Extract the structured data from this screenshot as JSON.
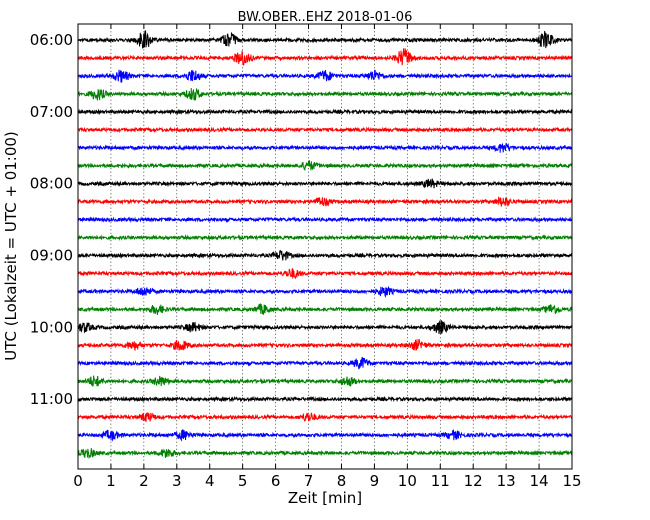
{
  "chart_data": {
    "type": "line",
    "title": "BW.OBER..EHZ 2018-01-06",
    "xlabel": "Zeit  [min]",
    "ylabel": "UTC (Lokalzeit = UTC + 01:00)",
    "xlim": [
      0,
      15
    ],
    "x_ticks": [
      "0",
      "1",
      "2",
      "3",
      "4",
      "5",
      "6",
      "7",
      "8",
      "9",
      "10",
      "11",
      "12",
      "13",
      "14",
      "15"
    ],
    "y_ticks": [
      "06:00",
      "07:00",
      "08:00",
      "09:00",
      "10:00",
      "11:00"
    ],
    "grid": "vertical dotted",
    "color_cycle": [
      "#000000",
      "#ff0000",
      "#0000ff",
      "#008000"
    ],
    "series": [
      {
        "start": "06:00",
        "color": "#000000",
        "bursts": [
          [
            2.0,
            2.6
          ],
          [
            4.6,
            1.8
          ],
          [
            14.2,
            2.4
          ]
        ]
      },
      {
        "start": "06:15",
        "color": "#ff0000",
        "bursts": [
          [
            5.0,
            2.2
          ],
          [
            9.9,
            2.6
          ]
        ]
      },
      {
        "start": "06:30",
        "color": "#0000ff",
        "bursts": [
          [
            1.3,
            1.7
          ],
          [
            3.5,
            1.7
          ],
          [
            7.5,
            1.5
          ],
          [
            9.0,
            1.4
          ]
        ]
      },
      {
        "start": "06:45",
        "color": "#008000",
        "bursts": [
          [
            0.6,
            1.6
          ],
          [
            3.5,
            1.7
          ]
        ]
      },
      {
        "start": "07:00",
        "color": "#000000",
        "bursts": []
      },
      {
        "start": "07:15",
        "color": "#ff0000",
        "bursts": []
      },
      {
        "start": "07:30",
        "color": "#0000ff",
        "bursts": [
          [
            12.9,
            1.3
          ]
        ]
      },
      {
        "start": "07:45",
        "color": "#008000",
        "bursts": [
          [
            7.0,
            1.3
          ]
        ]
      },
      {
        "start": "08:00",
        "color": "#000000",
        "bursts": [
          [
            10.7,
            1.2
          ]
        ]
      },
      {
        "start": "08:15",
        "color": "#ff0000",
        "bursts": [
          [
            7.4,
            1.2
          ],
          [
            12.9,
            1.3
          ]
        ]
      },
      {
        "start": "08:30",
        "color": "#0000ff",
        "bursts": []
      },
      {
        "start": "08:45",
        "color": "#008000",
        "bursts": []
      },
      {
        "start": "09:00",
        "color": "#000000",
        "bursts": [
          [
            6.2,
            1.4
          ]
        ]
      },
      {
        "start": "09:15",
        "color": "#ff0000",
        "bursts": [
          [
            6.5,
            1.3
          ]
        ]
      },
      {
        "start": "09:30",
        "color": "#0000ff",
        "bursts": [
          [
            2.0,
            1.3
          ],
          [
            9.3,
            1.3
          ]
        ]
      },
      {
        "start": "09:45",
        "color": "#008000",
        "bursts": [
          [
            2.4,
            1.3
          ],
          [
            5.6,
            1.3
          ],
          [
            14.4,
            1.3
          ]
        ]
      },
      {
        "start": "10:00",
        "color": "#000000",
        "bursts": [
          [
            11.0,
            1.8
          ],
          [
            3.5,
            1.3
          ],
          [
            0.2,
            1.3
          ]
        ]
      },
      {
        "start": "10:15",
        "color": "#ff0000",
        "bursts": [
          [
            3.1,
            1.5
          ],
          [
            10.3,
            1.4
          ],
          [
            1.7,
            1.2
          ]
        ]
      },
      {
        "start": "10:30",
        "color": "#0000ff",
        "bursts": [
          [
            8.6,
            1.6
          ]
        ]
      },
      {
        "start": "10:45",
        "color": "#008000",
        "bursts": [
          [
            0.5,
            1.5
          ],
          [
            2.5,
            1.3
          ],
          [
            8.2,
            1.3
          ]
        ]
      },
      {
        "start": "11:00",
        "color": "#000000",
        "bursts": []
      },
      {
        "start": "11:15",
        "color": "#ff0000",
        "bursts": [
          [
            2.1,
            1.2
          ],
          [
            7.0,
            1.2
          ]
        ]
      },
      {
        "start": "11:30",
        "color": "#0000ff",
        "bursts": [
          [
            1.0,
            1.3
          ],
          [
            3.2,
            1.3
          ],
          [
            11.4,
            1.2
          ]
        ]
      },
      {
        "start": "11:45",
        "color": "#008000",
        "bursts": [
          [
            0.3,
            1.3
          ],
          [
            2.7,
            1.2
          ]
        ]
      }
    ]
  }
}
